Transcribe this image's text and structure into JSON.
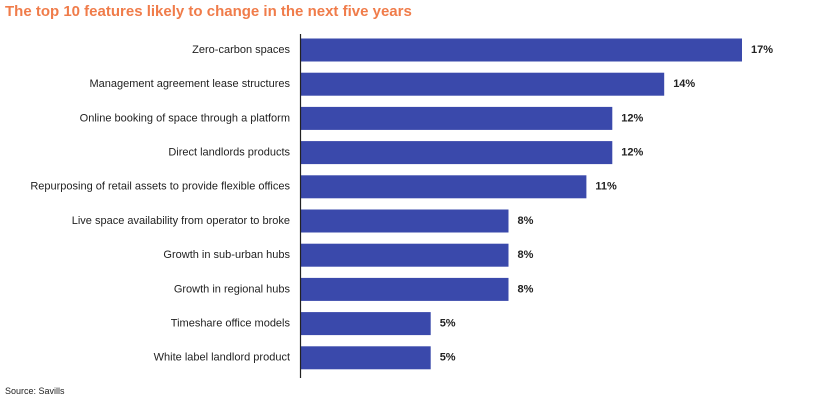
{
  "source": "Source: Savills",
  "chart_data": {
    "type": "bar",
    "orientation": "horizontal",
    "title": "The top 10 features likely to change in the next five years",
    "categories": [
      "Zero-carbon spaces",
      "Management agreement lease structures",
      "Online booking of space through a platform",
      "Direct landlords products",
      "Repurposing of retail assets to provide flexible offices",
      "Live space availability from operator to broke",
      "Growth in sub-urban hubs",
      "Growth in regional hubs",
      "Timeshare office models",
      "White label landlord product"
    ],
    "values": [
      17,
      14,
      12,
      12,
      11,
      8,
      8,
      8,
      5,
      5
    ],
    "value_labels": [
      "17%",
      "14%",
      "12%",
      "12%",
      "11%",
      "8%",
      "8%",
      "8%",
      "5%",
      "5%"
    ],
    "xlim": [
      0,
      17
    ],
    "bar_color": "#3a49ab",
    "title_color": "#f07c4a",
    "grid": false,
    "legend": "none"
  }
}
